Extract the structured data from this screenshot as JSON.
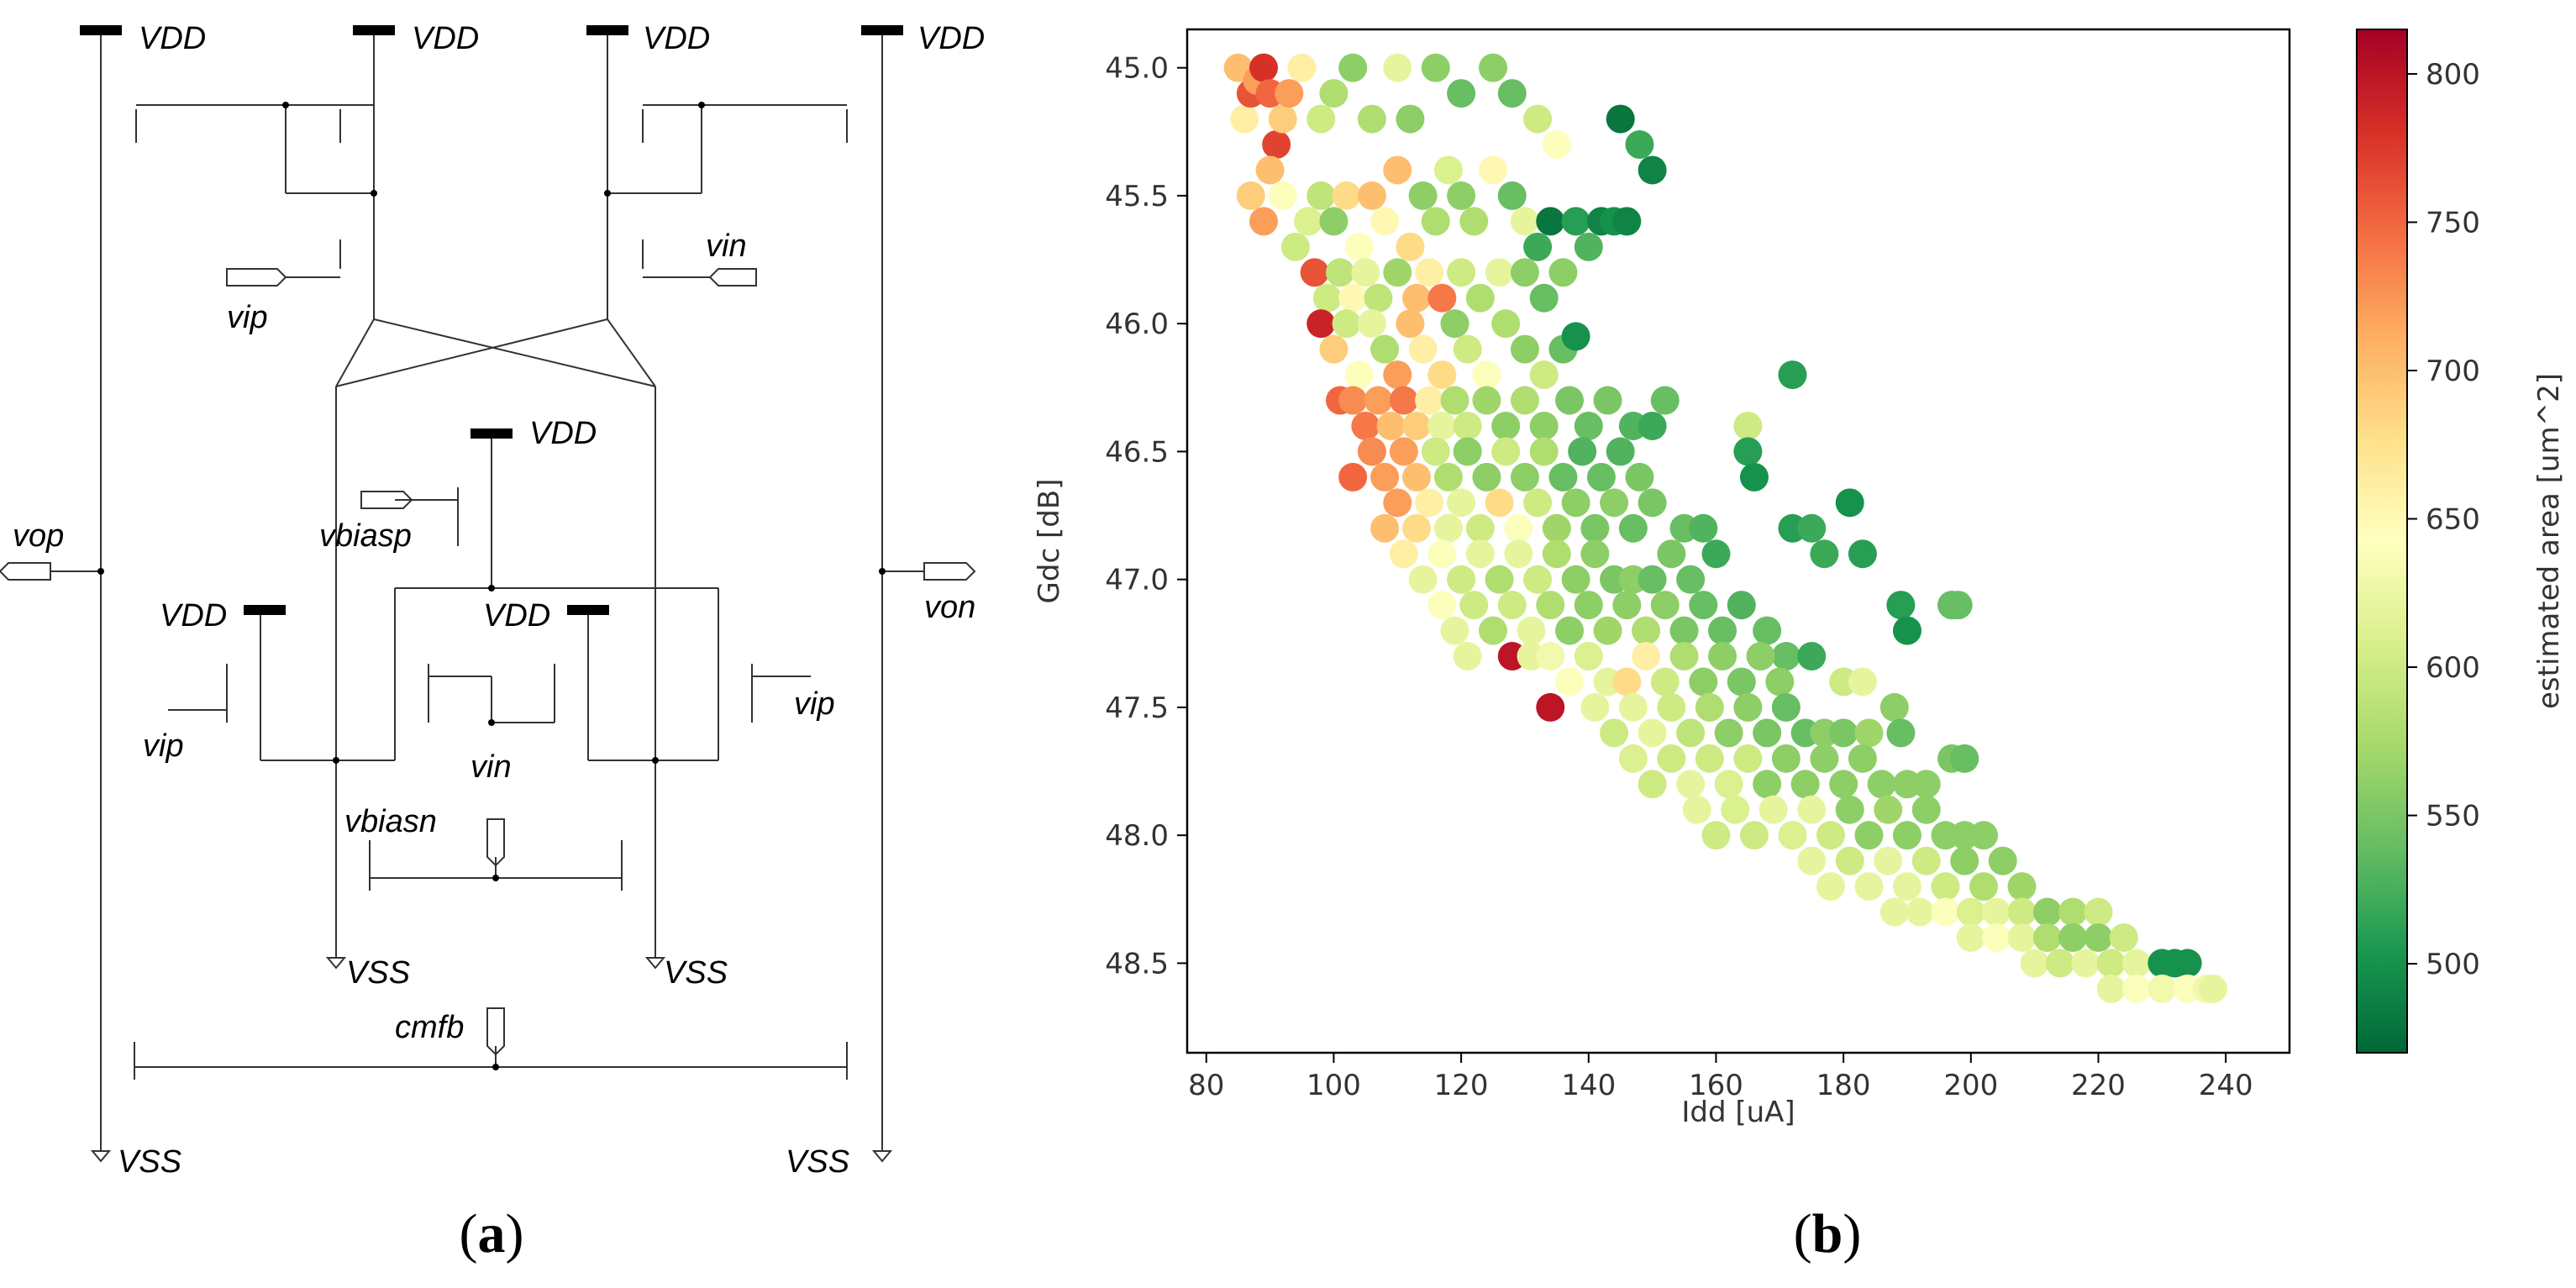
{
  "panels": {
    "a": {
      "open": "(",
      "letter": "a",
      "close": ")"
    },
    "b": {
      "open": "(",
      "letter": "b",
      "close": ")"
    }
  },
  "schematic": {
    "labels": {
      "vdd": "VDD",
      "vss": "VSS",
      "vip": "vip",
      "vin": "vin",
      "vop": "vop",
      "von": "von",
      "vbiasp": "vbiasp",
      "vbiasn": "vbiasn",
      "cmfb": "cmfb"
    }
  },
  "chart_data": {
    "type": "scatter",
    "title": "",
    "xlabel": "Idd [uA]",
    "ylabel": "Gdc [dB]",
    "xlim": [
      77,
      250
    ],
    "ylim": [
      44.85,
      48.85
    ],
    "y_inverted": true,
    "xticks": [
      80,
      100,
      120,
      140,
      160,
      180,
      200,
      220,
      240
    ],
    "yticks": [
      45.0,
      45.5,
      46.0,
      46.5,
      47.0,
      47.5,
      48.0,
      48.5
    ],
    "colorbar": {
      "label": "estimated area [um^2]",
      "range": [
        470,
        815
      ],
      "ticks": [
        500,
        550,
        600,
        650,
        700,
        750,
        800
      ],
      "colormap": "RdYlGn_r",
      "stops": [
        "#006837",
        "#1a9850",
        "#66bd63",
        "#a6d96a",
        "#d9ef8b",
        "#ffffbf",
        "#fee08b",
        "#fdae61",
        "#f46d43",
        "#d73027",
        "#a50026"
      ]
    },
    "points": [
      [
        85,
        45.0,
        700
      ],
      [
        86,
        45.2,
        660
      ],
      [
        87,
        45.1,
        760
      ],
      [
        88,
        45.05,
        720
      ],
      [
        89,
        45.0,
        780
      ],
      [
        90,
        45.1,
        750
      ],
      [
        91,
        45.3,
        770
      ],
      [
        92,
        45.2,
        690
      ],
      [
        93,
        45.1,
        720
      ],
      [
        95,
        45.0,
        660
      ],
      [
        98,
        45.2,
        600
      ],
      [
        100,
        45.1,
        580
      ],
      [
        103,
        45.0,
        560
      ],
      [
        106,
        45.2,
        580
      ],
      [
        110,
        45.0,
        620
      ],
      [
        112,
        45.2,
        560
      ],
      [
        116,
        45.0,
        560
      ],
      [
        120,
        45.1,
        540
      ],
      [
        125,
        45.0,
        560
      ],
      [
        128,
        45.1,
        540
      ],
      [
        132,
        45.2,
        600
      ],
      [
        135,
        45.3,
        640
      ],
      [
        145,
        45.2,
        480
      ],
      [
        148,
        45.3,
        520
      ],
      [
        150,
        45.4,
        490
      ],
      [
        87,
        45.5,
        690
      ],
      [
        89,
        45.6,
        720
      ],
      [
        90,
        45.4,
        700
      ],
      [
        92,
        45.5,
        640
      ],
      [
        94,
        45.7,
        600
      ],
      [
        96,
        45.6,
        610
      ],
      [
        98,
        45.5,
        590
      ],
      [
        100,
        45.6,
        560
      ],
      [
        102,
        45.5,
        680
      ],
      [
        104,
        45.7,
        640
      ],
      [
        106,
        45.5,
        700
      ],
      [
        108,
        45.6,
        650
      ],
      [
        110,
        45.4,
        700
      ],
      [
        112,
        45.7,
        680
      ],
      [
        114,
        45.5,
        560
      ],
      [
        116,
        45.6,
        580
      ],
      [
        118,
        45.4,
        610
      ],
      [
        120,
        45.5,
        560
      ],
      [
        122,
        45.6,
        580
      ],
      [
        125,
        45.4,
        650
      ],
      [
        128,
        45.5,
        540
      ],
      [
        130,
        45.6,
        620
      ],
      [
        132,
        45.7,
        520
      ],
      [
        134,
        45.6,
        480
      ],
      [
        138,
        45.6,
        510
      ],
      [
        140,
        45.7,
        530
      ],
      [
        142,
        45.6,
        490
      ],
      [
        144,
        45.6,
        500
      ],
      [
        146,
        45.6,
        490
      ],
      [
        97,
        45.8,
        760
      ],
      [
        99,
        45.9,
        600
      ],
      [
        101,
        45.8,
        590
      ],
      [
        103,
        45.9,
        650
      ],
      [
        105,
        45.8,
        620
      ],
      [
        107,
        45.9,
        590
      ],
      [
        110,
        45.8,
        570
      ],
      [
        113,
        45.9,
        700
      ],
      [
        115,
        45.8,
        660
      ],
      [
        117,
        45.9,
        740
      ],
      [
        120,
        45.8,
        600
      ],
      [
        123,
        45.9,
        580
      ],
      [
        126,
        45.8,
        620
      ],
      [
        130,
        45.8,
        560
      ],
      [
        133,
        45.9,
        540
      ],
      [
        136,
        45.8,
        560
      ],
      [
        98,
        46.0,
        790
      ],
      [
        100,
        46.1,
        690
      ],
      [
        102,
        46.0,
        600
      ],
      [
        104,
        46.2,
        640
      ],
      [
        106,
        46.0,
        620
      ],
      [
        108,
        46.1,
        580
      ],
      [
        110,
        46.2,
        720
      ],
      [
        112,
        46.0,
        700
      ],
      [
        114,
        46.1,
        660
      ],
      [
        117,
        46.2,
        680
      ],
      [
        119,
        46.0,
        560
      ],
      [
        121,
        46.1,
        600
      ],
      [
        124,
        46.2,
        640
      ],
      [
        127,
        46.0,
        580
      ],
      [
        130,
        46.1,
        560
      ],
      [
        133,
        46.2,
        600
      ],
      [
        136,
        46.1,
        540
      ],
      [
        138,
        46.05,
        500
      ],
      [
        101,
        46.3,
        750
      ],
      [
        103,
        46.3,
        730
      ],
      [
        105,
        46.4,
        740
      ],
      [
        107,
        46.3,
        720
      ],
      [
        109,
        46.4,
        700
      ],
      [
        111,
        46.3,
        740
      ],
      [
        113,
        46.4,
        690
      ],
      [
        115,
        46.3,
        660
      ],
      [
        117,
        46.4,
        620
      ],
      [
        119,
        46.3,
        580
      ],
      [
        121,
        46.4,
        600
      ],
      [
        124,
        46.3,
        570
      ],
      [
        127,
        46.4,
        560
      ],
      [
        130,
        46.3,
        580
      ],
      [
        133,
        46.4,
        560
      ],
      [
        137,
        46.3,
        550
      ],
      [
        140,
        46.4,
        540
      ],
      [
        143,
        46.3,
        550
      ],
      [
        147,
        46.4,
        530
      ],
      [
        150,
        46.4,
        520
      ],
      [
        152,
        46.3,
        540
      ],
      [
        165,
        46.4,
        600
      ],
      [
        172,
        46.2,
        510
      ],
      [
        103,
        46.6,
        750
      ],
      [
        106,
        46.5,
        730
      ],
      [
        108,
        46.6,
        720
      ],
      [
        111,
        46.5,
        720
      ],
      [
        113,
        46.6,
        700
      ],
      [
        116,
        46.5,
        600
      ],
      [
        118,
        46.6,
        580
      ],
      [
        121,
        46.5,
        560
      ],
      [
        124,
        46.6,
        560
      ],
      [
        127,
        46.5,
        600
      ],
      [
        130,
        46.6,
        560
      ],
      [
        133,
        46.5,
        580
      ],
      [
        136,
        46.6,
        540
      ],
      [
        139,
        46.5,
        530
      ],
      [
        142,
        46.6,
        540
      ],
      [
        145,
        46.5,
        530
      ],
      [
        148,
        46.6,
        550
      ],
      [
        165,
        46.5,
        510
      ],
      [
        166,
        46.6,
        500
      ],
      [
        108,
        46.8,
        700
      ],
      [
        110,
        46.7,
        720
      ],
      [
        113,
        46.8,
        680
      ],
      [
        115,
        46.7,
        660
      ],
      [
        118,
        46.8,
        620
      ],
      [
        120,
        46.7,
        620
      ],
      [
        123,
        46.8,
        600
      ],
      [
        126,
        46.7,
        680
      ],
      [
        129,
        46.8,
        640
      ],
      [
        132,
        46.7,
        600
      ],
      [
        135,
        46.8,
        570
      ],
      [
        138,
        46.7,
        560
      ],
      [
        141,
        46.8,
        550
      ],
      [
        144,
        46.7,
        560
      ],
      [
        147,
        46.8,
        540
      ],
      [
        150,
        46.7,
        550
      ],
      [
        155,
        46.8,
        540
      ],
      [
        158,
        46.8,
        530
      ],
      [
        172,
        46.8,
        510
      ],
      [
        175,
        46.8,
        520
      ],
      [
        181,
        46.7,
        500
      ],
      [
        111,
        46.9,
        660
      ],
      [
        114,
        47.0,
        620
      ],
      [
        117,
        46.9,
        640
      ],
      [
        120,
        47.0,
        600
      ],
      [
        123,
        46.9,
        620
      ],
      [
        126,
        47.0,
        580
      ],
      [
        129,
        46.9,
        620
      ],
      [
        132,
        47.0,
        600
      ],
      [
        135,
        46.9,
        580
      ],
      [
        138,
        47.0,
        560
      ],
      [
        141,
        46.9,
        560
      ],
      [
        144,
        47.0,
        550
      ],
      [
        147,
        47.0,
        560
      ],
      [
        150,
        47.0,
        540
      ],
      [
        153,
        46.9,
        550
      ],
      [
        156,
        47.0,
        540
      ],
      [
        160,
        46.9,
        520
      ],
      [
        177,
        46.9,
        520
      ],
      [
        183,
        46.9,
        510
      ],
      [
        117,
        47.1,
        640
      ],
      [
        119,
        47.2,
        620
      ],
      [
        122,
        47.1,
        600
      ],
      [
        125,
        47.2,
        580
      ],
      [
        128,
        47.1,
        600
      ],
      [
        131,
        47.2,
        620
      ],
      [
        134,
        47.1,
        580
      ],
      [
        137,
        47.2,
        560
      ],
      [
        140,
        47.1,
        560
      ],
      [
        143,
        47.2,
        570
      ],
      [
        146,
        47.1,
        560
      ],
      [
        149,
        47.2,
        580
      ],
      [
        152,
        47.1,
        560
      ],
      [
        155,
        47.2,
        550
      ],
      [
        158,
        47.1,
        540
      ],
      [
        161,
        47.2,
        540
      ],
      [
        164,
        47.1,
        530
      ],
      [
        168,
        47.2,
        540
      ],
      [
        171,
        47.3,
        540
      ],
      [
        189,
        47.1,
        510
      ],
      [
        190,
        47.2,
        500
      ],
      [
        197,
        47.1,
        540
      ],
      [
        198,
        47.1,
        540
      ],
      [
        121,
        47.3,
        620
      ],
      [
        128,
        47.3,
        800
      ],
      [
        131,
        47.3,
        620
      ],
      [
        134,
        47.3,
        630
      ],
      [
        137,
        47.4,
        640
      ],
      [
        140,
        47.3,
        610
      ],
      [
        143,
        47.4,
        620
      ],
      [
        146,
        47.4,
        680
      ],
      [
        149,
        47.3,
        660
      ],
      [
        152,
        47.4,
        600
      ],
      [
        155,
        47.3,
        580
      ],
      [
        158,
        47.4,
        560
      ],
      [
        161,
        47.3,
        560
      ],
      [
        164,
        47.4,
        550
      ],
      [
        167,
        47.3,
        560
      ],
      [
        170,
        47.4,
        560
      ],
      [
        175,
        47.3,
        520
      ],
      [
        180,
        47.4,
        600
      ],
      [
        183,
        47.4,
        620
      ],
      [
        134,
        47.5,
        800
      ],
      [
        141,
        47.5,
        620
      ],
      [
        144,
        47.6,
        600
      ],
      [
        147,
        47.5,
        620
      ],
      [
        150,
        47.6,
        620
      ],
      [
        153,
        47.5,
        600
      ],
      [
        156,
        47.6,
        590
      ],
      [
        159,
        47.5,
        580
      ],
      [
        162,
        47.6,
        560
      ],
      [
        165,
        47.5,
        560
      ],
      [
        168,
        47.6,
        550
      ],
      [
        171,
        47.5,
        540
      ],
      [
        174,
        47.6,
        540
      ],
      [
        177,
        47.6,
        560
      ],
      [
        180,
        47.6,
        550
      ],
      [
        184,
        47.6,
        570
      ],
      [
        188,
        47.5,
        560
      ],
      [
        189,
        47.6,
        540
      ],
      [
        147,
        47.7,
        610
      ],
      [
        150,
        47.8,
        600
      ],
      [
        153,
        47.7,
        600
      ],
      [
        156,
        47.8,
        620
      ],
      [
        159,
        47.7,
        600
      ],
      [
        162,
        47.8,
        610
      ],
      [
        165,
        47.7,
        600
      ],
      [
        168,
        47.8,
        560
      ],
      [
        171,
        47.7,
        560
      ],
      [
        174,
        47.8,
        560
      ],
      [
        177,
        47.7,
        560
      ],
      [
        180,
        47.8,
        560
      ],
      [
        183,
        47.7,
        560
      ],
      [
        186,
        47.8,
        560
      ],
      [
        190,
        47.8,
        560
      ],
      [
        193,
        47.8,
        560
      ],
      [
        197,
        47.7,
        550
      ],
      [
        199,
        47.7,
        540
      ],
      [
        157,
        47.9,
        620
      ],
      [
        160,
        48.0,
        600
      ],
      [
        163,
        47.9,
        610
      ],
      [
        166,
        48.0,
        600
      ],
      [
        169,
        47.9,
        620
      ],
      [
        172,
        48.0,
        610
      ],
      [
        175,
        47.9,
        620
      ],
      [
        178,
        48.0,
        600
      ],
      [
        181,
        47.9,
        560
      ],
      [
        184,
        48.0,
        560
      ],
      [
        187,
        47.9,
        570
      ],
      [
        190,
        48.0,
        560
      ],
      [
        193,
        47.9,
        560
      ],
      [
        196,
        48.0,
        560
      ],
      [
        199,
        48.0,
        560
      ],
      [
        202,
        48.0,
        560
      ],
      [
        175,
        48.1,
        620
      ],
      [
        178,
        48.2,
        620
      ],
      [
        181,
        48.1,
        600
      ],
      [
        184,
        48.2,
        620
      ],
      [
        187,
        48.1,
        620
      ],
      [
        190,
        48.2,
        620
      ],
      [
        193,
        48.1,
        600
      ],
      [
        196,
        48.2,
        600
      ],
      [
        199,
        48.1,
        560
      ],
      [
        202,
        48.2,
        580
      ],
      [
        205,
        48.1,
        560
      ],
      [
        208,
        48.2,
        570
      ],
      [
        188,
        48.3,
        620
      ],
      [
        192,
        48.3,
        620
      ],
      [
        196,
        48.3,
        640
      ],
      [
        200,
        48.3,
        610
      ],
      [
        204,
        48.3,
        620
      ],
      [
        208,
        48.3,
        600
      ],
      [
        212,
        48.3,
        560
      ],
      [
        216,
        48.3,
        580
      ],
      [
        220,
        48.3,
        600
      ],
      [
        200,
        48.4,
        620
      ],
      [
        204,
        48.4,
        640
      ],
      [
        208,
        48.4,
        620
      ],
      [
        212,
        48.4,
        580
      ],
      [
        216,
        48.4,
        560
      ],
      [
        220,
        48.4,
        560
      ],
      [
        224,
        48.4,
        600
      ],
      [
        210,
        48.5,
        620
      ],
      [
        214,
        48.5,
        600
      ],
      [
        218,
        48.5,
        620
      ],
      [
        222,
        48.5,
        600
      ],
      [
        226,
        48.5,
        620
      ],
      [
        230,
        48.5,
        500
      ],
      [
        232,
        48.5,
        500
      ],
      [
        234,
        48.5,
        500
      ],
      [
        222,
        48.6,
        620
      ],
      [
        226,
        48.6,
        640
      ],
      [
        230,
        48.6,
        630
      ],
      [
        234,
        48.6,
        640
      ],
      [
        237,
        48.6,
        630
      ],
      [
        238,
        48.6,
        620
      ]
    ]
  }
}
